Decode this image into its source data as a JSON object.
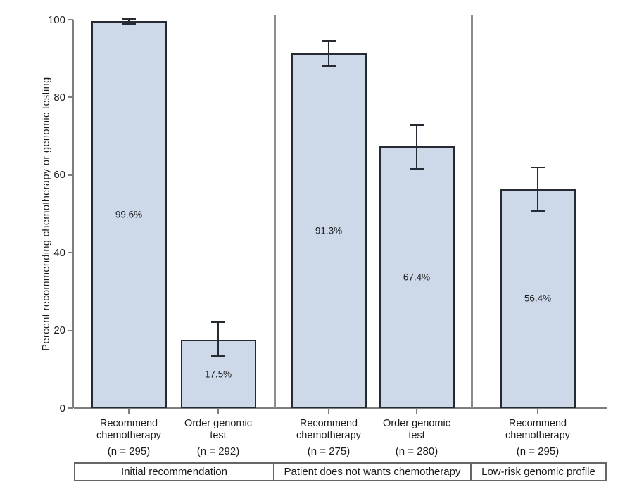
{
  "figure": {
    "background": "#ffffff"
  },
  "chart_data": {
    "type": "bar",
    "title": "",
    "xlabel": "",
    "ylabel": "Percent recommending chemotherapy or genomic testing",
    "ylim": [
      0,
      100
    ],
    "yticks": [
      0,
      20,
      40,
      60,
      80,
      100
    ],
    "grid": false,
    "legend": "none",
    "error_bars": true,
    "bar_fill_color": "#cdd8e8",
    "bar_border_color": "#262a33",
    "axis_color": "#7e7e7e",
    "divider_color": "#8c8c8c",
    "group_box_border_color": "#666666",
    "text_color": "#1a1a1a",
    "groups": [
      {
        "label": "Initial recommendation",
        "bars": [
          {
            "category_line1": "Recommend",
            "category_line2": "chemotherapy",
            "n_label": "(n = 295)",
            "value": 99.6,
            "value_label": "99.6%",
            "ci_low": 98.9,
            "ci_high": 100.3
          },
          {
            "category_line1": "Order genomic",
            "category_line2": "test",
            "n_label": "(n = 292)",
            "value": 17.5,
            "value_label": "17.5%",
            "ci_low": 13.3,
            "ci_high": 22.2
          }
        ]
      },
      {
        "label": "Patient does not wants chemotherapy",
        "bars": [
          {
            "category_line1": "Recommend",
            "category_line2": "chemotherapy",
            "n_label": "(n = 275)",
            "value": 91.3,
            "value_label": "91.3%",
            "ci_low": 88.0,
            "ci_high": 94.6
          },
          {
            "category_line1": "Order genomic",
            "category_line2": "test",
            "n_label": "(n = 280)",
            "value": 67.4,
            "value_label": "67.4%",
            "ci_low": 61.5,
            "ci_high": 72.9
          }
        ]
      },
      {
        "label": "Low-risk genomic profile",
        "bars": [
          {
            "category_line1": "Recommend",
            "category_line2": "chemotherapy",
            "n_label": "(n = 295)",
            "value": 56.4,
            "value_label": "56.4%",
            "ci_low": 50.6,
            "ci_high": 62.0
          }
        ]
      }
    ]
  }
}
